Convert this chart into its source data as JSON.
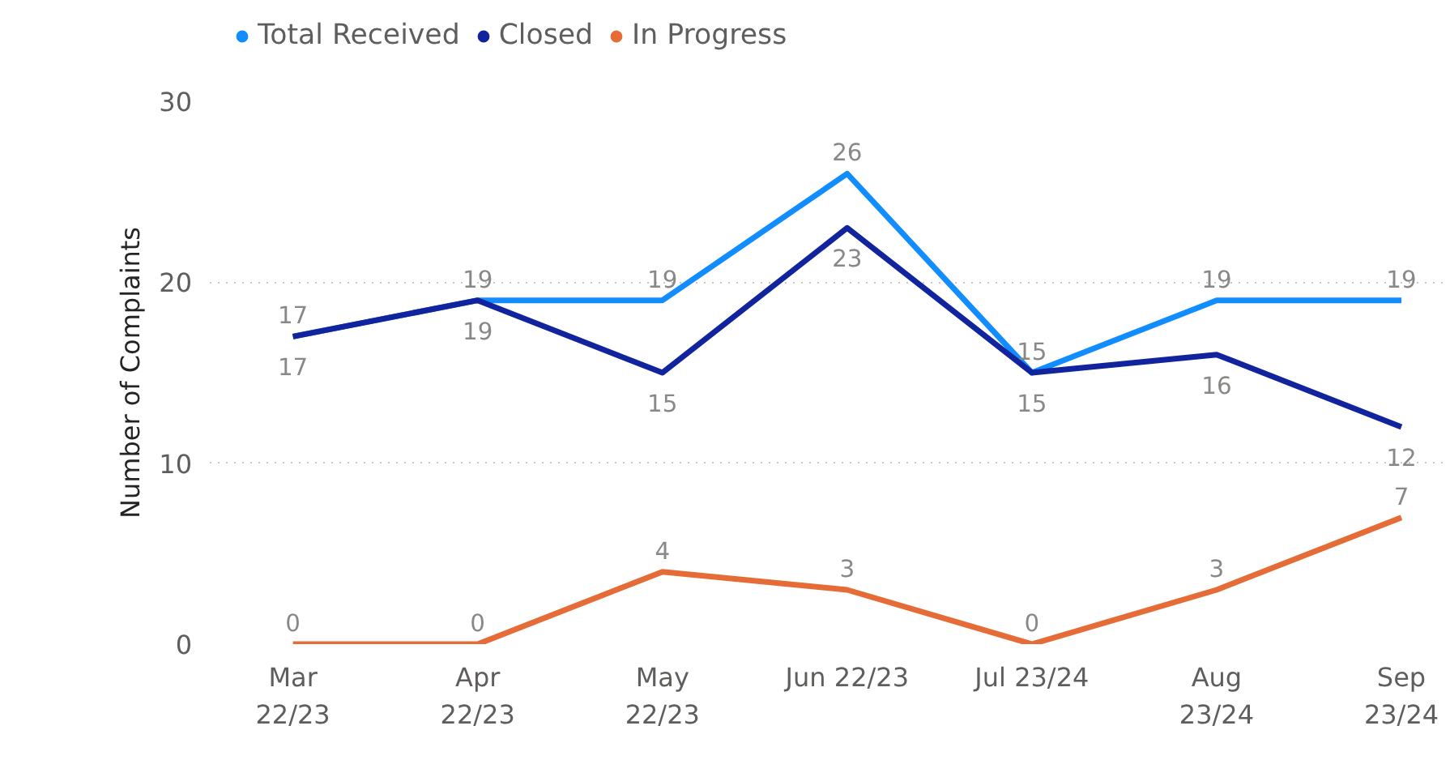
{
  "chart_data": {
    "type": "line",
    "ylabel": "Number of Complaints",
    "categories": [
      "Mar\n22/23",
      "Apr\n22/23",
      "May\n22/23",
      "Jun 22/23",
      "Jul 23/24",
      "Aug\n23/24",
      "Sep\n23/24"
    ],
    "series": [
      {
        "name": "Total Received",
        "color": "#118dff",
        "values": [
          17,
          19,
          19,
          26,
          15,
          19,
          19
        ]
      },
      {
        "name": "Closed",
        "color": "#12239e",
        "values": [
          17,
          19,
          15,
          23,
          15,
          16,
          12
        ]
      },
      {
        "name": "In Progress",
        "color": "#e66c37",
        "values": [
          0,
          0,
          4,
          3,
          0,
          3,
          7
        ]
      }
    ],
    "ylim": [
      0,
      30
    ],
    "yticks": [
      0,
      10,
      20,
      30
    ],
    "grid": "y",
    "legend": "top left",
    "data_labels": true,
    "marker": "none",
    "line_style": "solid"
  }
}
